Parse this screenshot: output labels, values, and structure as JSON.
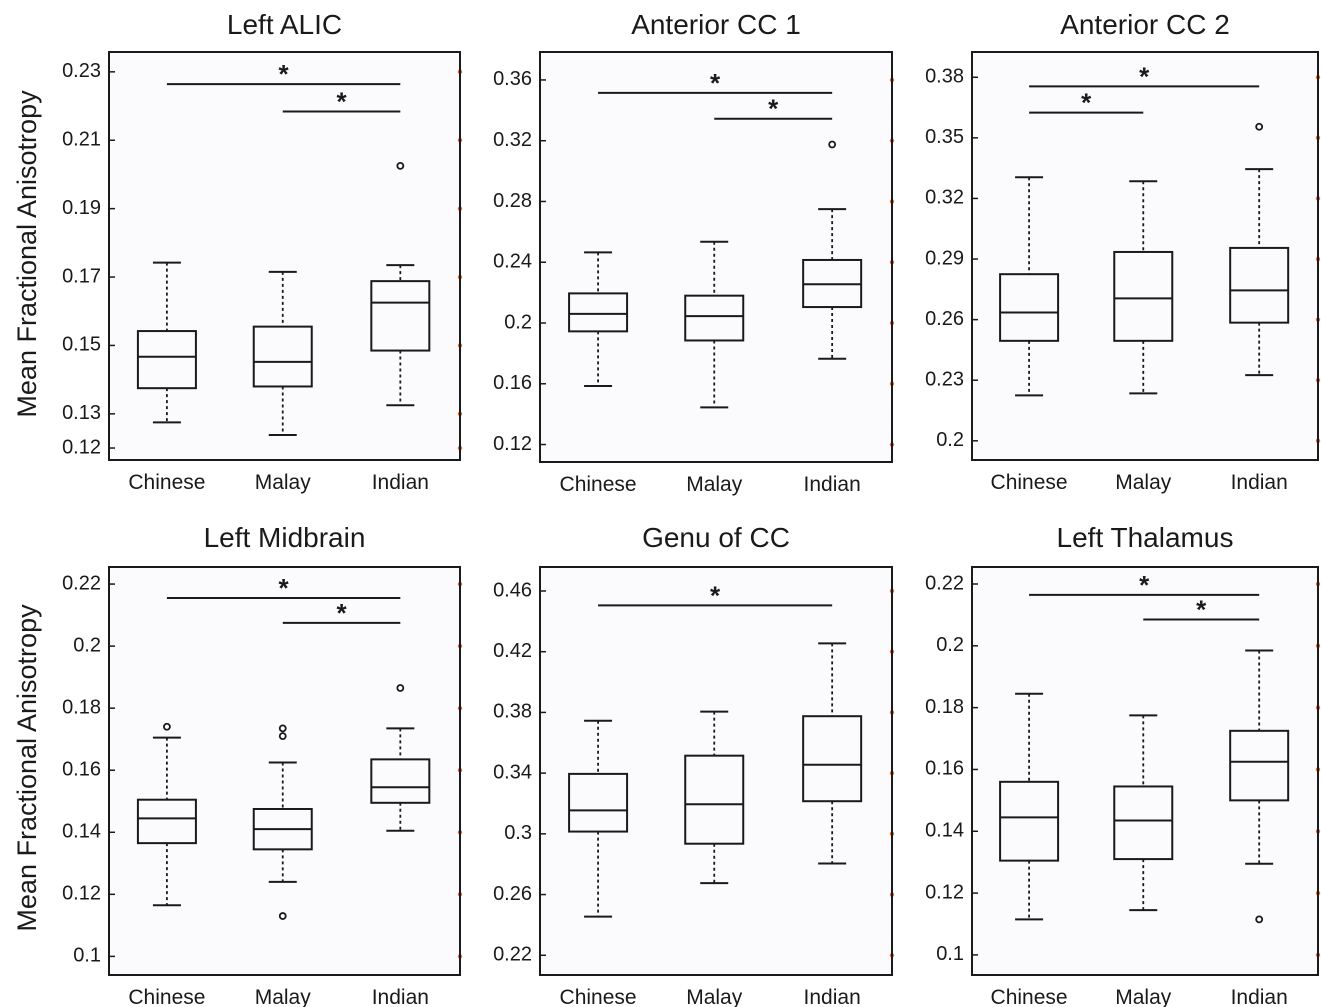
{
  "ylabel": "Mean Fractional Anisotropy",
  "chart_data": [
    {
      "type": "box",
      "title": "Left ALIC",
      "categories": [
        "Chinese",
        "Malay",
        "Indian"
      ],
      "yticks": [
        "0.12",
        "0.13",
        "0.15",
        "0.17",
        "0.19",
        "0.21",
        "0.23"
      ],
      "ylim": [
        0.1165,
        0.2358
      ],
      "boxes": [
        {
          "min": 0.1275,
          "q1": 0.1375,
          "median": 0.1467,
          "q3": 0.1542,
          "max": 0.1742,
          "outliers": []
        },
        {
          "min": 0.1238,
          "q1": 0.138,
          "median": 0.1452,
          "q3": 0.1555,
          "max": 0.1715,
          "outliers": []
        },
        {
          "min": 0.1325,
          "q1": 0.1485,
          "median": 0.1625,
          "q3": 0.1688,
          "max": 0.1735,
          "outliers": [
            0.2025
          ]
        }
      ],
      "significance": [
        {
          "from": 0,
          "to": 2,
          "label": "*",
          "y": 0.2264
        },
        {
          "from": 1,
          "to": 2,
          "label": "*",
          "y": 0.2184
        }
      ]
    },
    {
      "type": "box",
      "title": "Anterior CC 1",
      "categories": [
        "Chinese",
        "Malay",
        "Indian"
      ],
      "yticks": [
        "0.12",
        "0.16",
        "0.2",
        "0.24",
        "0.28",
        "0.32",
        "0.36"
      ],
      "ylim": [
        0.1085,
        0.3784
      ],
      "boxes": [
        {
          "min": 0.1585,
          "q1": 0.1945,
          "median": 0.206,
          "q3": 0.2195,
          "max": 0.2465,
          "outliers": []
        },
        {
          "min": 0.1445,
          "q1": 0.1885,
          "median": 0.2045,
          "q3": 0.218,
          "max": 0.2535,
          "outliers": []
        },
        {
          "min": 0.1765,
          "q1": 0.2105,
          "median": 0.2255,
          "q3": 0.2415,
          "max": 0.275,
          "outliers": [
            0.3175
          ]
        }
      ],
      "significance": [
        {
          "from": 0,
          "to": 2,
          "label": "*",
          "y": 0.3515
        },
        {
          "from": 1,
          "to": 2,
          "label": "*",
          "y": 0.3345
        }
      ]
    },
    {
      "type": "box",
      "title": "Anterior CC 2",
      "categories": [
        "Chinese",
        "Malay",
        "Indian"
      ],
      "yticks": [
        "0.2",
        "0.23",
        "0.26",
        "0.29",
        "0.32",
        "0.35",
        "0.38"
      ],
      "ylim": [
        0.1905,
        0.3925
      ],
      "boxes": [
        {
          "min": 0.2225,
          "q1": 0.2495,
          "median": 0.2635,
          "q3": 0.2825,
          "max": 0.3305,
          "outliers": []
        },
        {
          "min": 0.2235,
          "q1": 0.2495,
          "median": 0.2705,
          "q3": 0.2935,
          "max": 0.3285,
          "outliers": []
        },
        {
          "min": 0.2325,
          "q1": 0.2585,
          "median": 0.2745,
          "q3": 0.2955,
          "max": 0.3345,
          "outliers": [
            0.3555
          ]
        }
      ],
      "significance": [
        {
          "from": 0,
          "to": 2,
          "label": "*",
          "y": 0.3755
        },
        {
          "from": 0,
          "to": 1,
          "label": "*",
          "y": 0.3625
        }
      ]
    },
    {
      "type": "box",
      "title": "Left Midbrain",
      "categories": [
        "Chinese",
        "Malay",
        "Indian"
      ],
      "yticks": [
        "0.1",
        "0.12",
        "0.14",
        "0.16",
        "0.18",
        "0.2",
        "0.22"
      ],
      "ylim": [
        0.094,
        0.2255
      ],
      "boxes": [
        {
          "min": 0.1165,
          "q1": 0.1365,
          "median": 0.1445,
          "q3": 0.1505,
          "max": 0.1705,
          "outliers": [
            0.174
          ]
        },
        {
          "min": 0.124,
          "q1": 0.1345,
          "median": 0.141,
          "q3": 0.1475,
          "max": 0.1625,
          "outliers": [
            0.1735,
            0.171,
            0.113
          ]
        },
        {
          "min": 0.1405,
          "q1": 0.1495,
          "median": 0.1545,
          "q3": 0.1635,
          "max": 0.1735,
          "outliers": [
            0.1865
          ]
        }
      ],
      "significance": [
        {
          "from": 0,
          "to": 2,
          "label": "*",
          "y": 0.2155
        },
        {
          "from": 1,
          "to": 2,
          "label": "*",
          "y": 0.2075
        }
      ]
    },
    {
      "type": "box",
      "title": "Genu of CC",
      "categories": [
        "Chinese",
        "Malay",
        "Indian"
      ],
      "yticks": [
        "0.22",
        "0.26",
        "0.3",
        "0.34",
        "0.38",
        "0.42",
        "0.46"
      ],
      "ylim": [
        0.207,
        0.4758
      ],
      "boxes": [
        {
          "min": 0.2455,
          "q1": 0.3015,
          "median": 0.3155,
          "q3": 0.3395,
          "max": 0.3745,
          "outliers": []
        },
        {
          "min": 0.2675,
          "q1": 0.2935,
          "median": 0.3195,
          "q3": 0.3515,
          "max": 0.3805,
          "outliers": []
        },
        {
          "min": 0.2805,
          "q1": 0.3215,
          "median": 0.3455,
          "q3": 0.3775,
          "max": 0.4255,
          "outliers": []
        }
      ],
      "significance": [
        {
          "from": 0,
          "to": 2,
          "label": "*",
          "y": 0.4505
        }
      ]
    },
    {
      "type": "box",
      "title": "Left Thalamus",
      "categories": [
        "Chinese",
        "Malay",
        "Indian"
      ],
      "yticks": [
        "0.1",
        "0.12",
        "0.14",
        "0.16",
        "0.18",
        "0.2",
        "0.22"
      ],
      "ylim": [
        0.0935,
        0.2255
      ],
      "boxes": [
        {
          "min": 0.1115,
          "q1": 0.1305,
          "median": 0.1445,
          "q3": 0.156,
          "max": 0.1845,
          "outliers": []
        },
        {
          "min": 0.1145,
          "q1": 0.131,
          "median": 0.1435,
          "q3": 0.1545,
          "max": 0.1775,
          "outliers": []
        },
        {
          "min": 0.1295,
          "q1": 0.15,
          "median": 0.1625,
          "q3": 0.1725,
          "max": 0.1985,
          "outliers": [
            0.1115
          ]
        }
      ],
      "significance": [
        {
          "from": 0,
          "to": 2,
          "label": "*",
          "y": 0.2165
        },
        {
          "from": 1,
          "to": 2,
          "label": "*",
          "y": 0.2085
        }
      ]
    }
  ]
}
